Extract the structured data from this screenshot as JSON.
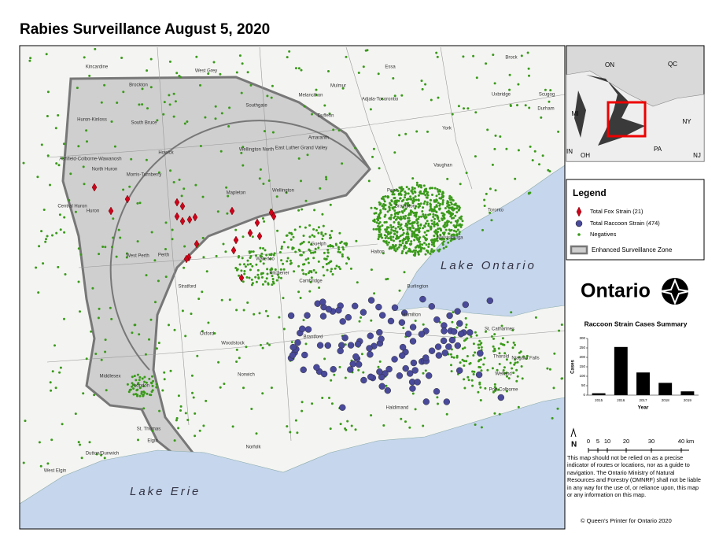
{
  "header": {
    "title": "Rabies Surveillance August 5, 2020"
  },
  "map": {
    "lakes": [
      "Lake Ontario",
      "Lake Erie"
    ],
    "places": [
      "Kincardine",
      "Brockton",
      "West Grey",
      "Southgate",
      "Melancthon",
      "Mulmur",
      "Essa",
      "Adjala-Tosorontio",
      "Huron-Kinloss",
      "South Bruce",
      "Dufferin",
      "Wellington North",
      "East Luther Grand Valley",
      "Amaranth",
      "York",
      "Uxbridge",
      "Durham",
      "Scugog",
      "Brock",
      "Howick",
      "Ashfield-Colborne-Wawanosh",
      "North Huron",
      "Morris-Turnberry",
      "Vaughan",
      "Peel",
      "Brampton",
      "Toronto",
      "Mississauga",
      "Huron",
      "Central Huron",
      "Mapleton",
      "Wellington",
      "Perth",
      "West Perth",
      "Guelph",
      "Halton",
      "Waterloo",
      "Kitchener",
      "Stratford",
      "Cambridge",
      "Burlington",
      "Hamilton",
      "St. Catharines",
      "Oxford",
      "Woodstock",
      "Brantford",
      "Thorold",
      "Niagara Falls",
      "Welland",
      "Port Colborne",
      "Norwich",
      "Haldimand",
      "London",
      "Middlesex",
      "St. Thomas",
      "Elgin",
      "Norfolk",
      "Dutton/Dunwich",
      "West Elgin"
    ]
  },
  "inset": {
    "labels": [
      "ON",
      "QC",
      "MI",
      "NY",
      "PA",
      "OH",
      "IN",
      "NJ"
    ]
  },
  "legend": {
    "title": "Legend",
    "items": [
      "Total Fox Strain (21)",
      "Total Raccoon Strain (474)",
      "Negatives",
      "Enhanced Surveillance Zone"
    ]
  },
  "logo": {
    "text": "Ontario"
  },
  "chart_data": {
    "type": "bar",
    "title": "Raccoon Strain Cases Summary",
    "categories": [
      "2015",
      "2016",
      "2017",
      "2018",
      "2019"
    ],
    "values": [
      10,
      255,
      120,
      65,
      20
    ],
    "color": "#000000",
    "ylim": [
      0,
      300
    ],
    "yticks": [
      0,
      50,
      100,
      150,
      200,
      250,
      300
    ],
    "xlabel": "Year",
    "ylabel": "Cases"
  },
  "scale": {
    "north": "N",
    "labels": [
      "0",
      "5",
      "10",
      "20",
      "30",
      "40 km"
    ]
  },
  "disclaimer": "This map should not be relied on as a precise indicator of routes or locations, nor as a guide to navigation. The Ontario Ministry of Natural Resources and Forestry (OMNRF) shall not be liable in any way for the use of, or reliance upon, this map or any information on this map.",
  "copyright": "© Queen's Printer for Ontario 2020"
}
